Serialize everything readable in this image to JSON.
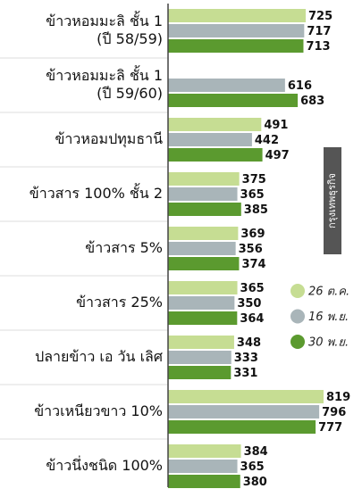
{
  "chart_data": {
    "type": "barh",
    "categories": [
      "ข้าวหอมมะลิ ชั้น 1\n(ปี 58/59)",
      "ข้าวหอมมะลิ ชั้น 1\n(ปี 59/60)",
      "ข้าวหอมปทุมธานี",
      "ข้าวสาร 100% ชั้น 2",
      "ข้าวสาร 5%",
      "ข้าวสาร 25%",
      "ปลายข้าว เอ วัน เลิศ",
      "ข้าวเหนียวขาว 10%",
      "ข้าวนึ่งชนิด 100%"
    ],
    "series": [
      {
        "name": "26 ต.ค.",
        "color": "#c6dd93",
        "values": [
          725,
          null,
          491,
          375,
          369,
          365,
          348,
          819,
          384
        ]
      },
      {
        "name": "16 พ.ย.",
        "color": "#a9b5b9",
        "values": [
          717,
          616,
          442,
          365,
          356,
          350,
          333,
          796,
          365
        ]
      },
      {
        "name": "30 พ.ย.",
        "color": "#5b9a2f",
        "values": [
          713,
          683,
          497,
          385,
          374,
          364,
          331,
          777,
          380
        ]
      }
    ],
    "source": "กรุงเทพธุรกิจ"
  }
}
